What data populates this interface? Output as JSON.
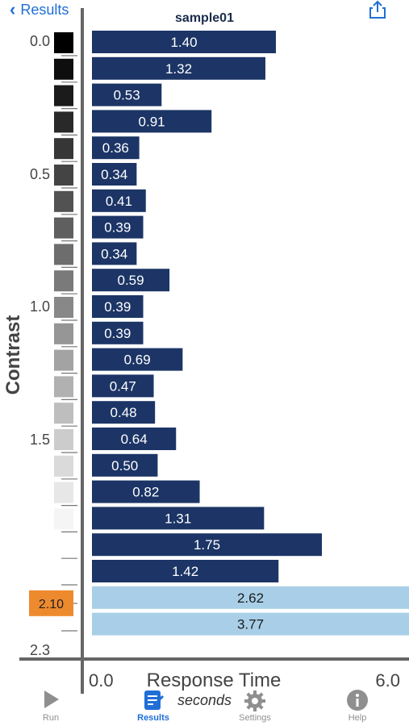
{
  "nav": {
    "back_label": "Results"
  },
  "chart_data": {
    "type": "bar",
    "orientation": "horizontal",
    "title": "sample01",
    "xlabel": "Response Time",
    "x_units": "seconds",
    "ylabel": "Contrast",
    "xlim": [
      0.0,
      6.0
    ],
    "x_tick_labels": [
      "0.0",
      "6.0"
    ],
    "y_tick_labels": [
      "0.0",
      "0.5",
      "1.0",
      "1.5",
      "2.3"
    ],
    "threshold_label": "2.10",
    "values": [
      1.4,
      1.32,
      0.53,
      0.91,
      0.36,
      0.34,
      0.41,
      0.39,
      0.34,
      0.59,
      0.39,
      0.39,
      0.69,
      0.47,
      0.48,
      0.64,
      0.5,
      0.82,
      1.31,
      1.75,
      1.42,
      2.62,
      3.77
    ],
    "value_labels": [
      "1.40",
      "1.32",
      "0.53",
      "0.91",
      "0.36",
      "0.34",
      "0.41",
      "0.39",
      "0.34",
      "0.59",
      "0.39",
      "0.39",
      "0.69",
      "0.47",
      "0.48",
      "0.64",
      "0.50",
      "0.82",
      "1.31",
      "1.75",
      "1.42",
      "2.62",
      "3.77"
    ],
    "swatch_levels": [
      0.0,
      0.1,
      0.2,
      0.3,
      0.4,
      0.5,
      0.6,
      0.7,
      0.8,
      0.9,
      1.0,
      1.1,
      1.2,
      1.3,
      1.4,
      1.5,
      1.6,
      1.7,
      1.8,
      1.9,
      2.0,
      2.1
    ],
    "colors": {
      "bar": "#1c3566",
      "bar_light": "#a9cfe8",
      "axis": "#666666",
      "threshold": "#ee8a2e"
    }
  },
  "tabs": [
    {
      "label": "Run",
      "icon": "play-icon",
      "active": false
    },
    {
      "label": "Results",
      "icon": "results-icon",
      "active": true
    },
    {
      "label": "Settings",
      "icon": "gear-icon",
      "active": false
    },
    {
      "label": "Help",
      "icon": "info-icon",
      "active": false
    }
  ]
}
